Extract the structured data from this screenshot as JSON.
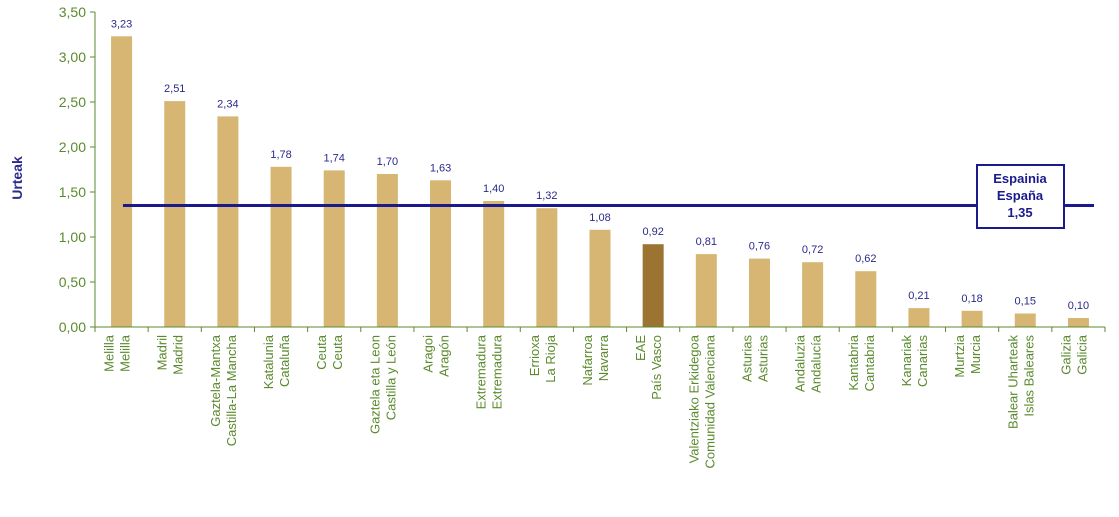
{
  "chart_data": {
    "type": "bar",
    "ylabel": "Urteak",
    "ylim": [
      0,
      3.5
    ],
    "ytick_values": [
      0,
      0.5,
      1,
      1.5,
      2,
      2.5,
      3,
      3.5
    ],
    "ytick_labels": [
      "0,00",
      "0,50",
      "1,00",
      "1,50",
      "2,00",
      "2,50",
      "3,00",
      "3,50"
    ],
    "grid": false,
    "categories": [
      [
        "Melilla",
        "Melilla"
      ],
      [
        "Madril",
        "Madrid"
      ],
      [
        "Gaztela-Mantxa",
        "Castilla-La Mancha"
      ],
      [
        "Katalunia",
        "Cataluña"
      ],
      [
        "Ceuta",
        "Ceuta"
      ],
      [
        "Gaztela eta Leon",
        "Castilla y León"
      ],
      [
        "Aragoi",
        "Aragón"
      ],
      [
        "Extremadura",
        "Extremadura"
      ],
      [
        "Errioxa",
        "La Rioja"
      ],
      [
        "Nafarroa",
        "Navarra"
      ],
      [
        "EAE",
        "País Vasco"
      ],
      [
        "Valentziako Erkidegoa",
        "Comunidad Valenciana"
      ],
      [
        "Asturias",
        "Asturias"
      ],
      [
        "Andaluzia",
        "Andalucía"
      ],
      [
        "Kantabria",
        "Cantabria"
      ],
      [
        "Kanariak",
        "Canarias"
      ],
      [
        "Murtzia",
        "Murcia"
      ],
      [
        "Balear Uharteak",
        "Islas Baleares"
      ],
      [
        "Galizia",
        "Galicia"
      ]
    ],
    "values": [
      3.23,
      2.51,
      2.34,
      1.78,
      1.74,
      1.7,
      1.63,
      1.4,
      1.32,
      1.08,
      0.92,
      0.81,
      0.76,
      0.72,
      0.62,
      0.21,
      0.18,
      0.15,
      0.1
    ],
    "value_labels": [
      "3,23",
      "2,51",
      "2,34",
      "1,78",
      "1,74",
      "1,70",
      "1,63",
      "1,40",
      "1,32",
      "1,08",
      "0,92",
      "0,81",
      "0,76",
      "0,72",
      "0,62",
      "0,21",
      "0,18",
      "0,15",
      "0,10"
    ],
    "highlight_index": 10,
    "reference_line": {
      "value": 1.35,
      "label_lines": [
        "Espainia",
        "España",
        "1,35"
      ]
    },
    "colors": {
      "bar": "#d6b672",
      "highlight_bar": "#9a7430",
      "reference_line": "#1a1a8c",
      "axis": "#5b8a2e",
      "value_label": "#2b2a8a"
    }
  }
}
